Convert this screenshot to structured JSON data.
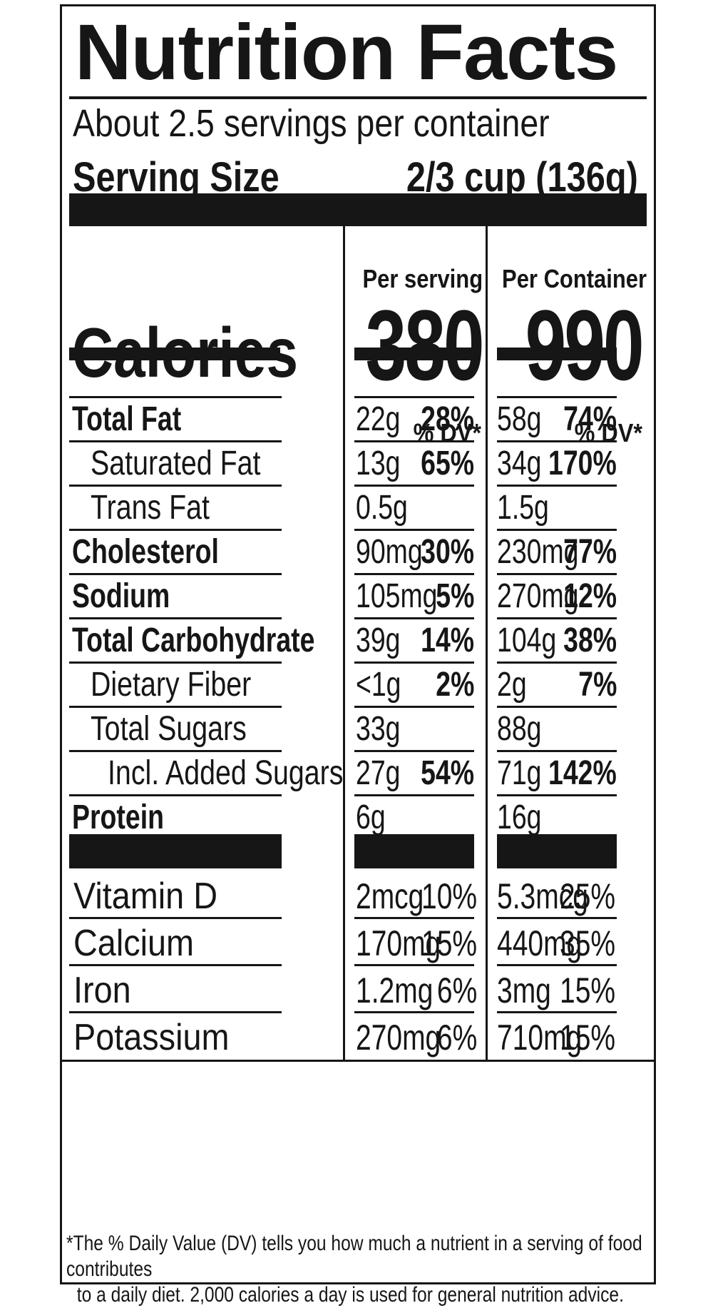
{
  "title": "Nutrition Facts",
  "servings_per_container": "About 2.5 servings per container",
  "serving_size": {
    "label": "Serving Size",
    "value": "2/3 cup (136g)"
  },
  "columns": {
    "per_serving": "Per serving",
    "per_container": "Per Container"
  },
  "calories": {
    "label": "Calories",
    "per_serving": "380",
    "per_container": "990"
  },
  "dv_header": "% DV*",
  "nutrients": [
    {
      "name": "Total Fat",
      "bold": true,
      "indent": 0,
      "ps_amount": "22g",
      "ps_dv": "28%",
      "pc_amount": "58g",
      "pc_dv": "74%"
    },
    {
      "name": "Saturated Fat",
      "bold": false,
      "indent": 1,
      "ps_amount": "13g",
      "ps_dv": "65%",
      "pc_amount": "34g",
      "pc_dv": "170%"
    },
    {
      "name": "Trans Fat",
      "bold": false,
      "indent": 1,
      "ps_amount": "0.5g",
      "ps_dv": "",
      "pc_amount": "1.5g",
      "pc_dv": ""
    },
    {
      "name": "Cholesterol",
      "bold": true,
      "indent": 0,
      "ps_amount": "90mg",
      "ps_dv": "30%",
      "pc_amount": "230mg",
      "pc_dv": "77%"
    },
    {
      "name": "Sodium",
      "bold": true,
      "indent": 0,
      "ps_amount": "105mg",
      "ps_dv": "5%",
      "pc_amount": "270mg",
      "pc_dv": "12%"
    },
    {
      "name": "Total Carbohydrate",
      "bold": true,
      "indent": 0,
      "ps_amount": "39g",
      "ps_dv": "14%",
      "pc_amount": "104g",
      "pc_dv": "38%"
    },
    {
      "name": "Dietary Fiber",
      "bold": false,
      "indent": 1,
      "ps_amount": "<1g",
      "ps_dv": "2%",
      "pc_amount": "2g",
      "pc_dv": "7%"
    },
    {
      "name": "Total Sugars",
      "bold": false,
      "indent": 1,
      "ps_amount": "33g",
      "ps_dv": "",
      "pc_amount": "88g",
      "pc_dv": ""
    },
    {
      "name": "Incl. Added Sugars",
      "bold": false,
      "indent": 2,
      "ps_amount": "27g",
      "ps_dv": "54%",
      "pc_amount": "71g",
      "pc_dv": "142%"
    },
    {
      "name": "Protein",
      "bold": true,
      "indent": 0,
      "ps_amount": "6g",
      "ps_dv": "",
      "pc_amount": "16g",
      "pc_dv": ""
    }
  ],
  "vitamins": [
    {
      "name": "Vitamin D",
      "ps_amount": "2mcg",
      "ps_dv": "10%",
      "pc_amount": "5.3mcg",
      "pc_dv": "25%"
    },
    {
      "name": "Calcium",
      "ps_amount": "170mg",
      "ps_dv": "15%",
      "pc_amount": "440mg",
      "pc_dv": "35%"
    },
    {
      "name": "Iron",
      "ps_amount": "1.2mg",
      "ps_dv": "6%",
      "pc_amount": "3mg",
      "pc_dv": "15%"
    },
    {
      "name": "Potassium",
      "ps_amount": "270mg",
      "ps_dv": "6%",
      "pc_amount": "710mg",
      "pc_dv": "15%"
    }
  ],
  "footnote": {
    "line1": "*The % Daily Value (DV) tells you how much a nutrient in a serving of food contributes",
    "line2": "to a daily diet. 2,000 calories a day is used for general nutrition advice."
  }
}
